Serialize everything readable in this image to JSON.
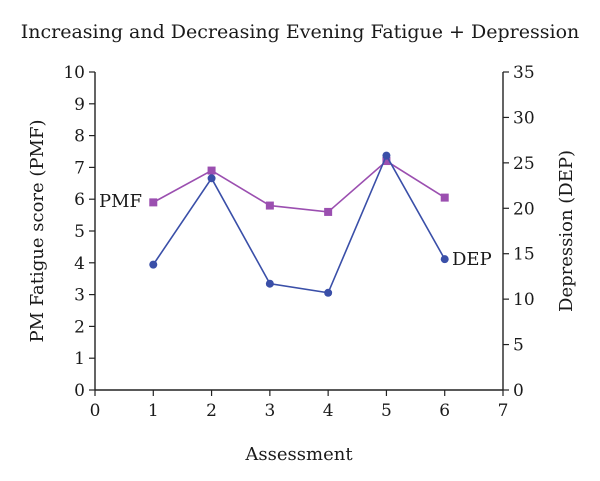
{
  "chart_data": {
    "type": "line",
    "title": "Increasing and Decreasing Evening Fatigue + Depression",
    "xlabel": "Assessment",
    "ylabel_left": "PM Fatigue score (PMF)",
    "ylabel_right": "Depression (DEP)",
    "x": [
      1,
      2,
      3,
      4,
      5,
      6
    ],
    "xlim": [
      0,
      7
    ],
    "xticks": [
      0,
      1,
      2,
      3,
      4,
      5,
      6,
      7
    ],
    "ylim_left": [
      0,
      10
    ],
    "yticks_left": [
      0,
      1,
      2,
      3,
      4,
      5,
      6,
      7,
      8,
      9,
      10
    ],
    "ylim_right": [
      0,
      35
    ],
    "yticks_right": [
      0,
      5,
      10,
      15,
      20,
      25,
      30,
      35
    ],
    "grid": false,
    "legend": "none",
    "series": [
      {
        "name": "PMF",
        "axis": "left",
        "marker": "square",
        "color": "#9b4fb0",
        "values": [
          5.9,
          6.9,
          5.8,
          5.6,
          7.2,
          6.05
        ]
      },
      {
        "name": "DEP",
        "axis": "right",
        "marker": "circle",
        "color": "#3a4fa8",
        "values": [
          13.8,
          23.3,
          11.7,
          10.7,
          25.8,
          14.4
        ]
      }
    ]
  }
}
